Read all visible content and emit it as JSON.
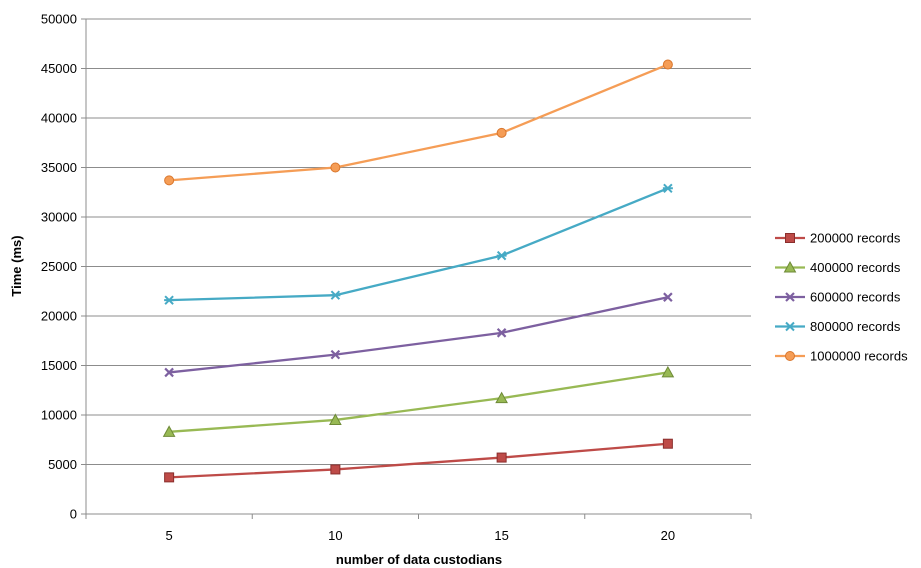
{
  "chart_data": {
    "type": "line",
    "title": "",
    "xlabel": "number of data custodians",
    "ylabel": "Time (ms)",
    "categories": [
      "5",
      "10",
      "15",
      "20"
    ],
    "ylim": [
      0,
      50000
    ],
    "yticks": [
      "0",
      "5000",
      "10000",
      "15000",
      "20000",
      "25000",
      "30000",
      "35000",
      "40000",
      "45000",
      "50000"
    ],
    "grid": true,
    "legend_position": "right",
    "series": [
      {
        "name": "200000 records",
        "color": "#be4b48",
        "marker": "square",
        "values": [
          3700,
          4500,
          5700,
          7100
        ]
      },
      {
        "name": "400000 records",
        "color": "#98b954",
        "marker": "triangle",
        "values": [
          8300,
          9500,
          11700,
          14300
        ]
      },
      {
        "name": "600000 records",
        "color": "#7d60a0",
        "marker": "x",
        "values": [
          14300,
          16100,
          18300,
          21900
        ]
      },
      {
        "name": "800000 records",
        "color": "#46aac5",
        "marker": "star",
        "values": [
          21600,
          22100,
          26100,
          32900
        ]
      },
      {
        "name": "1000000 records",
        "color": "#f59d56",
        "marker": "circle",
        "values": [
          33700,
          35000,
          38500,
          45400
        ]
      }
    ]
  }
}
